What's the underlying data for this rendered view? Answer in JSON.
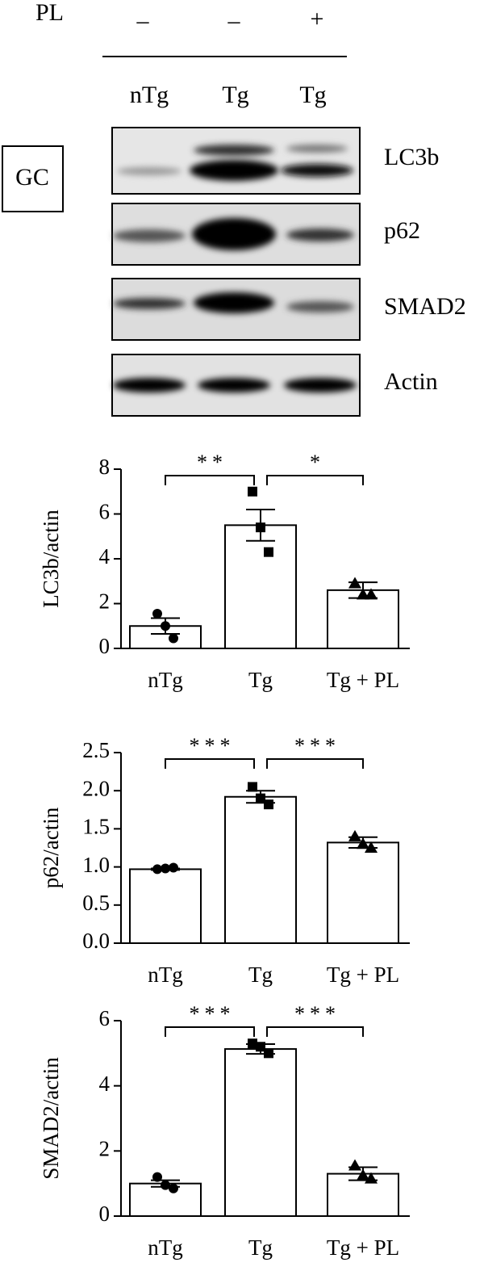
{
  "blot": {
    "treatment_label": "PL",
    "treatment": [
      "–",
      "–",
      "+"
    ],
    "groups": [
      "nTg",
      "Tg",
      "Tg"
    ],
    "tissue": "GC",
    "bands": [
      "LC3b",
      "p62",
      "SMAD2",
      "Actin"
    ]
  },
  "chart_data": [
    {
      "type": "bar",
      "ylabel": "LC3b/actin",
      "categories": [
        "nTg",
        "Tg",
        "Tg + PL"
      ],
      "values": [
        1.0,
        5.5,
        2.6
      ],
      "errors": [
        0.35,
        0.7,
        0.35
      ],
      "points": [
        [
          1.55,
          1.0,
          0.45
        ],
        [
          7.0,
          5.4,
          4.3
        ],
        [
          2.9,
          2.4,
          2.4
        ]
      ],
      "markers": [
        "circle",
        "square",
        "triangle"
      ],
      "color": "#ffffff",
      "ylim": [
        0,
        8
      ],
      "yticks": [
        0,
        2,
        4,
        6,
        8
      ],
      "annotations": [
        {
          "between": [
            "nTg",
            "Tg"
          ],
          "label": "**"
        },
        {
          "between": [
            "Tg",
            "Tg + PL"
          ],
          "label": "*"
        }
      ]
    },
    {
      "type": "bar",
      "ylabel": "p62/actin",
      "categories": [
        "nTg",
        "Tg",
        "Tg + PL"
      ],
      "values": [
        0.97,
        1.92,
        1.32
      ],
      "errors": [
        0.01,
        0.08,
        0.07
      ],
      "points": [
        [
          0.97,
          0.98,
          0.99
        ],
        [
          2.05,
          1.9,
          1.82
        ],
        [
          1.4,
          1.3,
          1.25
        ]
      ],
      "markers": [
        "circle",
        "square",
        "triangle"
      ],
      "color": "#ffffff",
      "ylim": [
        0,
        2.5
      ],
      "yticks": [
        {
          "value": 0,
          "label": "0.0"
        },
        0.5,
        {
          "value": 1,
          "label": "1.0"
        },
        1.5,
        {
          "value": 2,
          "label": "2.0"
        },
        2.5
      ],
      "annotations": [
        {
          "between": [
            "nTg",
            "Tg"
          ],
          "label": "***"
        },
        {
          "between": [
            "Tg",
            "Tg + PL"
          ],
          "label": "***"
        }
      ]
    },
    {
      "type": "bar",
      "ylabel": "SMAD2/actin",
      "categories": [
        "nTg",
        "Tg",
        "Tg + PL"
      ],
      "values": [
        1.0,
        5.13,
        1.3
      ],
      "errors": [
        0.1,
        0.15,
        0.2
      ],
      "points": [
        [
          1.2,
          0.95,
          0.85
        ],
        [
          5.3,
          5.2,
          5.0
        ],
        [
          1.55,
          1.25,
          1.15
        ]
      ],
      "markers": [
        "circle",
        "square",
        "triangle"
      ],
      "color": "#ffffff",
      "ylim": [
        0,
        6
      ],
      "yticks": [
        0,
        2,
        4,
        6
      ],
      "annotations": [
        {
          "between": [
            "nTg",
            "Tg"
          ],
          "label": "***"
        },
        {
          "between": [
            "Tg",
            "Tg + PL"
          ],
          "label": "***"
        }
      ]
    }
  ]
}
